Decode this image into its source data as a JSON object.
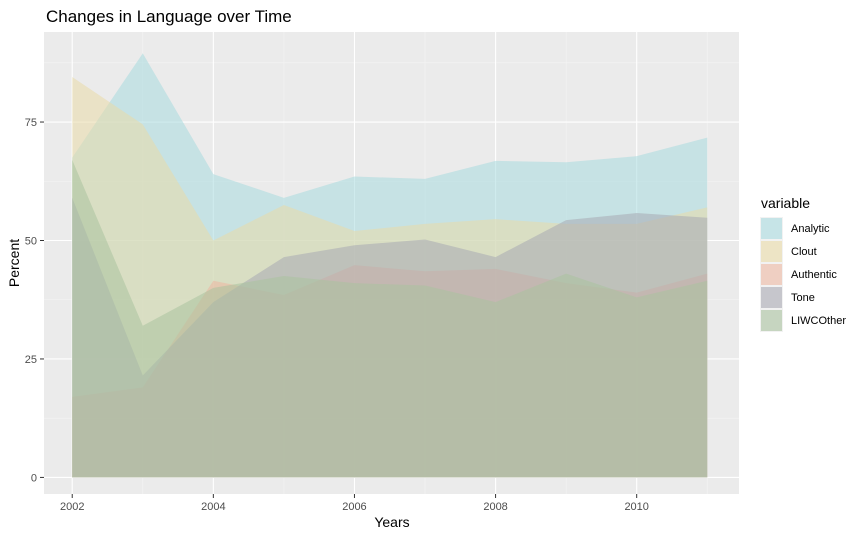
{
  "chart_data": {
    "type": "area",
    "title": "Changes in Language over Time",
    "xlabel": "Years",
    "ylabel": "Percent",
    "xlim": [
      2001.6,
      2011.45
    ],
    "ylim": [
      -3.5,
      94
    ],
    "x_ticks": [
      2002,
      2004,
      2006,
      2008,
      2010
    ],
    "y_ticks": [
      0,
      25,
      50,
      75
    ],
    "grid": true,
    "legend": {
      "title": "variable",
      "position": "right"
    },
    "x": [
      2002,
      2003,
      2004,
      2005,
      2006,
      2007,
      2008,
      2009,
      2010,
      2011
    ],
    "series": [
      {
        "name": "Analytic",
        "color": "#a8dadf",
        "values": [
          67.5,
          89.5,
          64.0,
          59.0,
          63.5,
          63.0,
          66.8,
          66.5,
          67.8,
          71.7
        ]
      },
      {
        "name": "Clout",
        "color": "#eadaa7",
        "values": [
          84.5,
          74.5,
          50.0,
          57.5,
          52.0,
          53.5,
          54.5,
          53.5,
          53.5,
          57.0
        ]
      },
      {
        "name": "Authentic",
        "color": "#ecb7a1",
        "values": [
          17.0,
          19.0,
          41.5,
          38.5,
          44.8,
          43.5,
          44.0,
          41.0,
          39.0,
          43.0
        ]
      },
      {
        "name": "Tone",
        "color": "#a8a9b3",
        "values": [
          59.0,
          21.5,
          37.0,
          46.5,
          49.0,
          50.2,
          46.5,
          54.3,
          55.8,
          54.8
        ]
      },
      {
        "name": "LIWCOther",
        "color": "#a9c29f",
        "values": [
          67.0,
          32.0,
          40.0,
          42.5,
          41.0,
          40.5,
          37.0,
          43.0,
          38.0,
          41.5
        ]
      }
    ]
  }
}
